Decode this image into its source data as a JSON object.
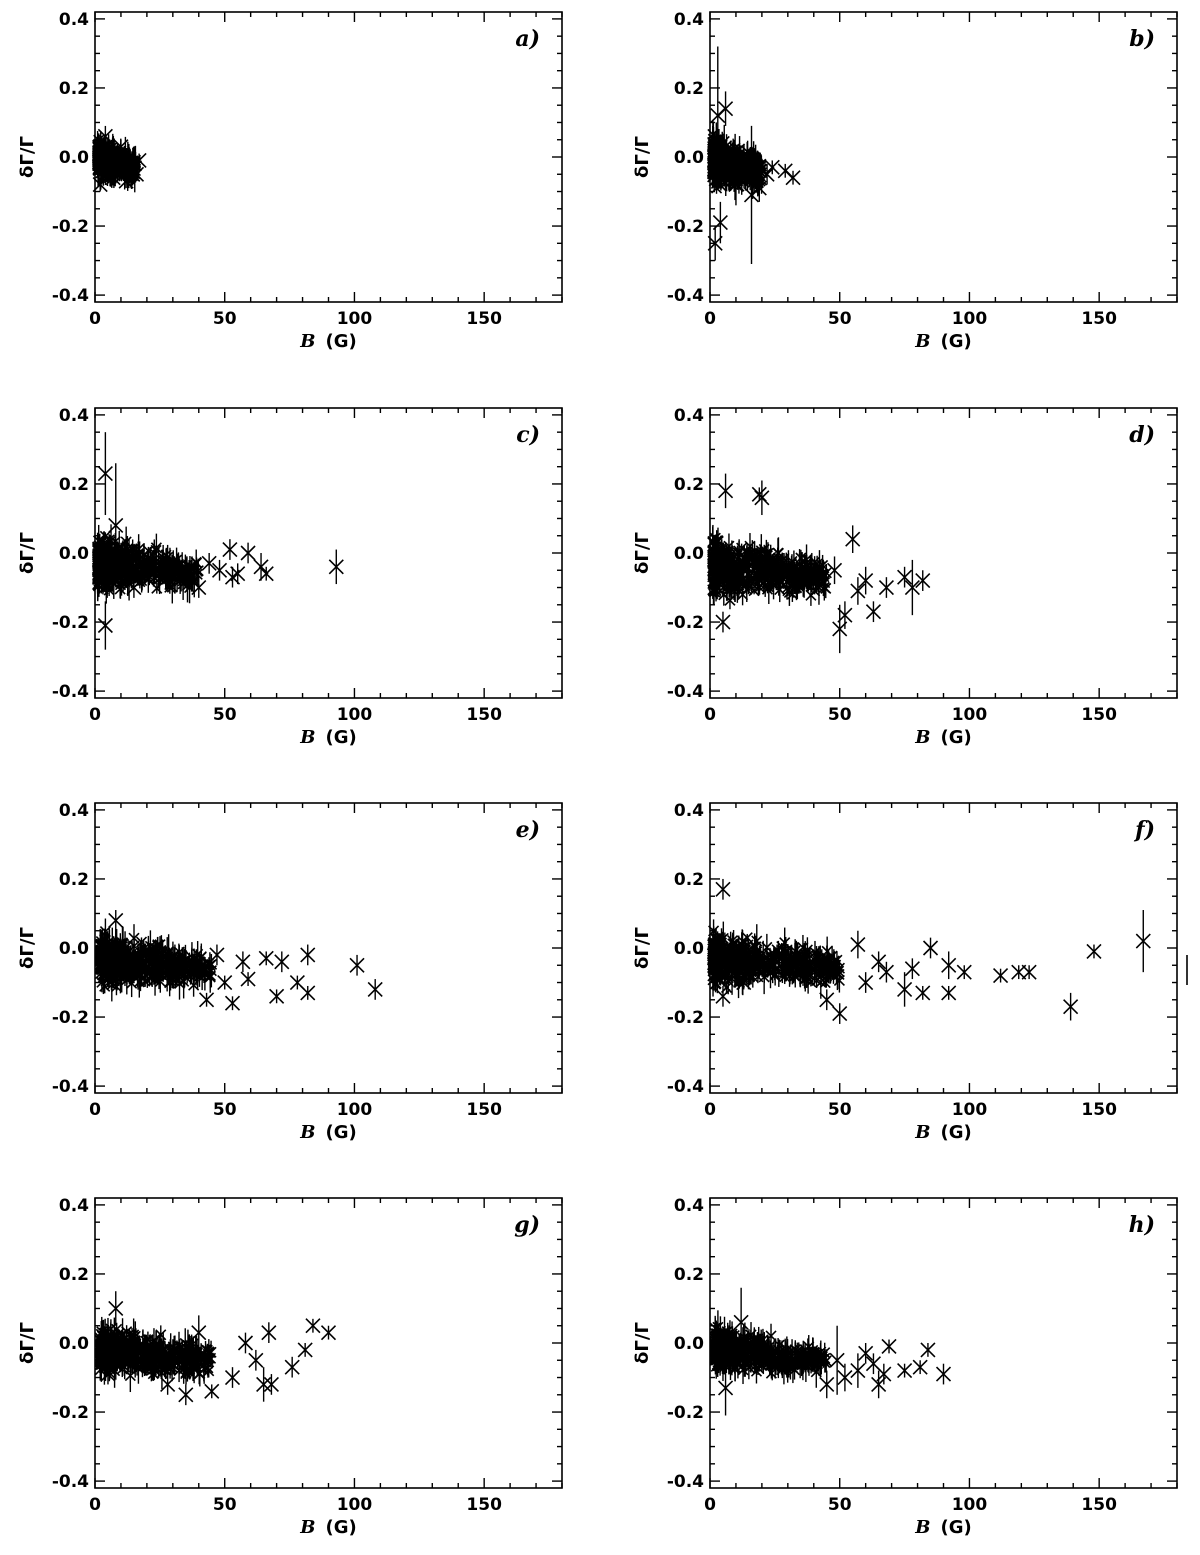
{
  "figure": {
    "panel_layout": "4 rows x 2 columns",
    "marker": "cross with vertical error bars",
    "color": "#000000"
  },
  "chart_data": [
    {
      "type": "scatter",
      "panel": "a)",
      "xlabel_var": "B",
      "xlabel_unit": "(G)",
      "ylabel": "δΓ/Γ",
      "xlim": [
        0,
        180
      ],
      "ylim": [
        -0.42,
        0.42
      ],
      "x_ticks": [
        "0",
        "50",
        "100",
        "150"
      ],
      "y_ticks": [
        "-0.4",
        "-0.2",
        "0.0",
        "0.2",
        "0.4"
      ],
      "dense_cloud": {
        "x_range": [
          1,
          16
        ],
        "y_center": 0.0,
        "y_spread": 0.06
      },
      "points": [
        {
          "x": 2,
          "y": -0.08,
          "err": 0.02
        },
        {
          "x": 4,
          "y": 0.06,
          "err": 0.03
        },
        {
          "x": 7,
          "y": -0.06,
          "err": 0.02
        },
        {
          "x": 10,
          "y": 0.03,
          "err": 0.02
        },
        {
          "x": 12,
          "y": -0.07,
          "err": 0.02
        },
        {
          "x": 14,
          "y": -0.02,
          "err": 0.02
        },
        {
          "x": 16,
          "y": -0.05,
          "err": 0.02
        },
        {
          "x": 17,
          "y": -0.01,
          "err": 0.02
        }
      ]
    },
    {
      "type": "scatter",
      "panel": "b)",
      "xlabel_var": "B",
      "xlabel_unit": "(G)",
      "ylabel": "δΓ/Γ",
      "xlim": [
        0,
        180
      ],
      "ylim": [
        -0.42,
        0.42
      ],
      "x_ticks": [
        "0",
        "50",
        "100",
        "150"
      ],
      "y_ticks": [
        "-0.4",
        "-0.2",
        "0.0",
        "0.2",
        "0.4"
      ],
      "dense_cloud": {
        "x_range": [
          1,
          20
        ],
        "y_center": -0.01,
        "y_spread": 0.09
      },
      "points": [
        {
          "x": 2,
          "y": -0.25,
          "err": 0.05
        },
        {
          "x": 3,
          "y": 0.12,
          "err": 0.2
        },
        {
          "x": 4,
          "y": -0.19,
          "err": 0.06
        },
        {
          "x": 6,
          "y": 0.14,
          "err": 0.05
        },
        {
          "x": 10,
          "y": -0.08,
          "err": 0.06
        },
        {
          "x": 16,
          "y": -0.11,
          "err": 0.2
        },
        {
          "x": 19,
          "y": -0.09,
          "err": 0.04
        },
        {
          "x": 22,
          "y": -0.05,
          "err": 0.03
        },
        {
          "x": 24,
          "y": -0.03,
          "err": 0.02
        },
        {
          "x": 29,
          "y": -0.04,
          "err": 0.02
        },
        {
          "x": 32,
          "y": -0.06,
          "err": 0.02
        }
      ]
    },
    {
      "type": "scatter",
      "panel": "c)",
      "xlabel_var": "B",
      "xlabel_unit": "(G)",
      "ylabel": "δΓ/Γ",
      "xlim": [
        0,
        180
      ],
      "ylim": [
        -0.42,
        0.42
      ],
      "x_ticks": [
        "0",
        "50",
        "100",
        "150"
      ],
      "y_ticks": [
        "-0.4",
        "-0.2",
        "0.0",
        "0.2",
        "0.4"
      ],
      "dense_cloud": {
        "x_range": [
          1,
          40
        ],
        "y_center": -0.03,
        "y_spread": 0.1
      },
      "points": [
        {
          "x": 4,
          "y": 0.23,
          "err": 0.12
        },
        {
          "x": 4,
          "y": -0.21,
          "err": 0.07
        },
        {
          "x": 8,
          "y": 0.08,
          "err": 0.18
        },
        {
          "x": 15,
          "y": -0.1,
          "err": 0.03
        },
        {
          "x": 40,
          "y": -0.1,
          "err": 0.03
        },
        {
          "x": 44,
          "y": -0.03,
          "err": 0.03
        },
        {
          "x": 48,
          "y": -0.05,
          "err": 0.03
        },
        {
          "x": 52,
          "y": 0.01,
          "err": 0.03
        },
        {
          "x": 53,
          "y": -0.07,
          "err": 0.03
        },
        {
          "x": 55,
          "y": -0.06,
          "err": 0.03
        },
        {
          "x": 59,
          "y": 0.0,
          "err": 0.03
        },
        {
          "x": 64,
          "y": -0.04,
          "err": 0.04
        },
        {
          "x": 66,
          "y": -0.06,
          "err": 0.02
        },
        {
          "x": 93,
          "y": -0.04,
          "err": 0.05
        }
      ]
    },
    {
      "type": "scatter",
      "panel": "d)",
      "xlabel_var": "B",
      "xlabel_unit": "(G)",
      "ylabel": "δΓ/Γ",
      "xlim": [
        0,
        180
      ],
      "ylim": [
        -0.42,
        0.42
      ],
      "x_ticks": [
        "0",
        "50",
        "100",
        "150"
      ],
      "y_ticks": [
        "-0.4",
        "-0.2",
        "0.0",
        "0.2",
        "0.4"
      ],
      "dense_cloud": {
        "x_range": [
          1,
          45
        ],
        "y_center": -0.04,
        "y_spread": 0.11
      },
      "points": [
        {
          "x": 5,
          "y": -0.2,
          "err": 0.03
        },
        {
          "x": 6,
          "y": 0.18,
          "err": 0.05
        },
        {
          "x": 19,
          "y": 0.17,
          "err": 0.02
        },
        {
          "x": 20,
          "y": 0.16,
          "err": 0.05
        },
        {
          "x": 42,
          "y": -0.1,
          "err": 0.05
        },
        {
          "x": 48,
          "y": -0.05,
          "err": 0.04
        },
        {
          "x": 50,
          "y": -0.22,
          "err": 0.07
        },
        {
          "x": 52,
          "y": -0.18,
          "err": 0.04
        },
        {
          "x": 55,
          "y": 0.04,
          "err": 0.04
        },
        {
          "x": 57,
          "y": -0.11,
          "err": 0.04
        },
        {
          "x": 60,
          "y": -0.08,
          "err": 0.04
        },
        {
          "x": 63,
          "y": -0.17,
          "err": 0.03
        },
        {
          "x": 68,
          "y": -0.1,
          "err": 0.03
        },
        {
          "x": 75,
          "y": -0.07,
          "err": 0.03
        },
        {
          "x": 78,
          "y": -0.1,
          "err": 0.08
        },
        {
          "x": 82,
          "y": -0.08,
          "err": 0.03
        }
      ]
    },
    {
      "type": "scatter",
      "panel": "e)",
      "xlabel_var": "B",
      "xlabel_unit": "(G)",
      "ylabel": "δΓ/Γ",
      "xlim": [
        0,
        180
      ],
      "ylim": [
        -0.42,
        0.42
      ],
      "x_ticks": [
        "0",
        "50",
        "100",
        "150"
      ],
      "y_ticks": [
        "-0.4",
        "-0.2",
        "0.0",
        "0.2",
        "0.4"
      ],
      "dense_cloud": {
        "x_range": [
          2,
          45
        ],
        "y_center": -0.03,
        "y_spread": 0.09
      },
      "points": [
        {
          "x": 5,
          "y": -0.09,
          "err": 0.02
        },
        {
          "x": 8,
          "y": 0.08,
          "err": 0.03
        },
        {
          "x": 43,
          "y": -0.15,
          "err": 0.02
        },
        {
          "x": 47,
          "y": -0.02,
          "err": 0.03
        },
        {
          "x": 50,
          "y": -0.1,
          "err": 0.02
        },
        {
          "x": 53,
          "y": -0.16,
          "err": 0.02
        },
        {
          "x": 57,
          "y": -0.04,
          "err": 0.03
        },
        {
          "x": 59,
          "y": -0.09,
          "err": 0.02
        },
        {
          "x": 66,
          "y": -0.03,
          "err": 0.02
        },
        {
          "x": 70,
          "y": -0.14,
          "err": 0.02
        },
        {
          "x": 72,
          "y": -0.04,
          "err": 0.03
        },
        {
          "x": 78,
          "y": -0.1,
          "err": 0.02
        },
        {
          "x": 82,
          "y": -0.02,
          "err": 0.03
        },
        {
          "x": 82,
          "y": -0.13,
          "err": 0.02
        },
        {
          "x": 101,
          "y": -0.05,
          "err": 0.03
        },
        {
          "x": 108,
          "y": -0.12,
          "err": 0.03
        }
      ]
    },
    {
      "type": "scatter",
      "panel": "f)",
      "xlabel_var": "B",
      "xlabel_unit": "(G)",
      "ylabel": "δΓ/Γ",
      "xlim": [
        0,
        180
      ],
      "ylim": [
        -0.42,
        0.42
      ],
      "x_ticks": [
        "0",
        "50",
        "100",
        "150"
      ],
      "y_ticks": [
        "-0.4",
        "-0.2",
        "0.0",
        "0.2",
        "0.4"
      ],
      "dense_cloud": {
        "x_range": [
          1,
          50
        ],
        "y_center": -0.03,
        "y_spread": 0.1
      },
      "points": [
        {
          "x": 5,
          "y": 0.17,
          "err": 0.03
        },
        {
          "x": 5,
          "y": -0.14,
          "err": 0.03
        },
        {
          "x": 13,
          "y": -0.1,
          "err": 0.02
        },
        {
          "x": 45,
          "y": -0.15,
          "err": 0.03
        },
        {
          "x": 50,
          "y": -0.19,
          "err": 0.03
        },
        {
          "x": 57,
          "y": 0.01,
          "err": 0.04
        },
        {
          "x": 60,
          "y": -0.1,
          "err": 0.03
        },
        {
          "x": 65,
          "y": -0.04,
          "err": 0.03
        },
        {
          "x": 68,
          "y": -0.07,
          "err": 0.03
        },
        {
          "x": 75,
          "y": -0.12,
          "err": 0.05
        },
        {
          "x": 78,
          "y": -0.06,
          "err": 0.03
        },
        {
          "x": 82,
          "y": -0.13,
          "err": 0.02
        },
        {
          "x": 85,
          "y": 0.0,
          "err": 0.03
        },
        {
          "x": 92,
          "y": -0.05,
          "err": 0.04
        },
        {
          "x": 92,
          "y": -0.13,
          "err": 0.02
        },
        {
          "x": 98,
          "y": -0.07,
          "err": 0.02
        },
        {
          "x": 112,
          "y": -0.08,
          "err": 0.02
        },
        {
          "x": 119,
          "y": -0.07,
          "err": 0.02
        },
        {
          "x": 123,
          "y": -0.07,
          "err": 0.02
        },
        {
          "x": 139,
          "y": -0.17,
          "err": 0.04
        },
        {
          "x": 148,
          "y": -0.01,
          "err": 0.02
        },
        {
          "x": 167,
          "y": 0.02,
          "err": 0.09
        }
      ]
    },
    {
      "type": "scatter",
      "panel": "g)",
      "xlabel_var": "B",
      "xlabel_unit": "(G)",
      "ylabel": "δΓ/Γ",
      "xlim": [
        0,
        180
      ],
      "ylim": [
        -0.42,
        0.42
      ],
      "x_ticks": [
        "0",
        "50",
        "100",
        "150"
      ],
      "y_ticks": [
        "-0.4",
        "-0.2",
        "0.0",
        "0.2",
        "0.4"
      ],
      "dense_cloud": {
        "x_range": [
          2,
          45
        ],
        "y_center": -0.02,
        "y_spread": 0.09
      },
      "points": [
        {
          "x": 5,
          "y": -0.09,
          "err": 0.03
        },
        {
          "x": 8,
          "y": 0.1,
          "err": 0.05
        },
        {
          "x": 28,
          "y": -0.12,
          "err": 0.03
        },
        {
          "x": 35,
          "y": -0.15,
          "err": 0.03
        },
        {
          "x": 40,
          "y": 0.03,
          "err": 0.05
        },
        {
          "x": 45,
          "y": -0.14,
          "err": 0.02
        },
        {
          "x": 53,
          "y": -0.1,
          "err": 0.03
        },
        {
          "x": 58,
          "y": 0.0,
          "err": 0.03
        },
        {
          "x": 62,
          "y": -0.05,
          "err": 0.03
        },
        {
          "x": 65,
          "y": -0.12,
          "err": 0.05
        },
        {
          "x": 67,
          "y": 0.03,
          "err": 0.03
        },
        {
          "x": 68,
          "y": -0.12,
          "err": 0.03
        },
        {
          "x": 76,
          "y": -0.07,
          "err": 0.03
        },
        {
          "x": 81,
          "y": -0.02,
          "err": 0.02
        },
        {
          "x": 84,
          "y": 0.05,
          "err": 0.02
        },
        {
          "x": 90,
          "y": 0.03,
          "err": 0.02
        }
      ]
    },
    {
      "type": "scatter",
      "panel": "h)",
      "xlabel_var": "B",
      "xlabel_unit": "(G)",
      "ylabel": "δΓ/Γ",
      "xlim": [
        0,
        180
      ],
      "ylim": [
        -0.42,
        0.42
      ],
      "x_ticks": [
        "0",
        "50",
        "100",
        "150"
      ],
      "y_ticks": [
        "-0.4",
        "-0.2",
        "0.0",
        "0.2",
        "0.4"
      ],
      "dense_cloud": {
        "x_range": [
          2,
          45
        ],
        "y_center": -0.02,
        "y_spread": 0.08
      },
      "points": [
        {
          "x": 5,
          "y": -0.06,
          "err": 0.05
        },
        {
          "x": 6,
          "y": -0.13,
          "err": 0.08
        },
        {
          "x": 12,
          "y": 0.06,
          "err": 0.1
        },
        {
          "x": 45,
          "y": -0.12,
          "err": 0.04
        },
        {
          "x": 49,
          "y": -0.05,
          "err": 0.1
        },
        {
          "x": 52,
          "y": -0.1,
          "err": 0.04
        },
        {
          "x": 57,
          "y": -0.08,
          "err": 0.05
        },
        {
          "x": 60,
          "y": -0.03,
          "err": 0.03
        },
        {
          "x": 63,
          "y": -0.06,
          "err": 0.03
        },
        {
          "x": 65,
          "y": -0.12,
          "err": 0.04
        },
        {
          "x": 67,
          "y": -0.09,
          "err": 0.03
        },
        {
          "x": 69,
          "y": -0.01,
          "err": 0.02
        },
        {
          "x": 75,
          "y": -0.08,
          "err": 0.02
        },
        {
          "x": 81,
          "y": -0.07,
          "err": 0.02
        },
        {
          "x": 84,
          "y": -0.02,
          "err": 0.02
        },
        {
          "x": 90,
          "y": -0.09,
          "err": 0.03
        }
      ]
    }
  ]
}
